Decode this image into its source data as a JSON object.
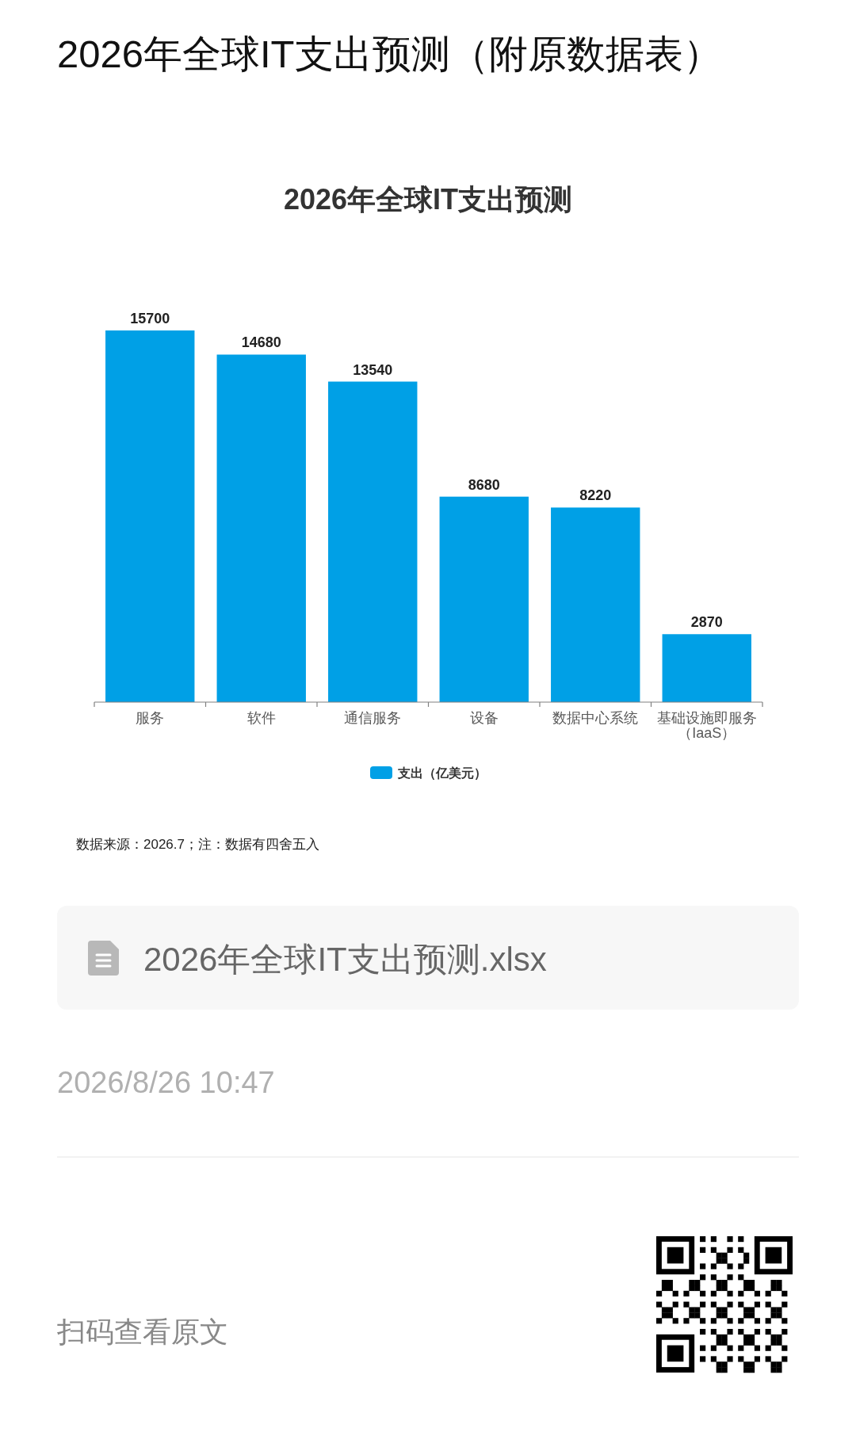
{
  "chart_data": {
    "type": "bar",
    "title": "2026年全球IT支出预测",
    "categories": [
      "服务",
      "软件",
      "通信服务",
      "设备",
      "数据中心系统",
      "基础设施即服务（IaaS）"
    ],
    "series": [
      {
        "name": "支出（亿美元）",
        "color": "#00a0e6",
        "values": [
          15700,
          14680,
          13540,
          8680,
          8220,
          2870
        ]
      }
    ],
    "tick_labels": "x",
    "data_labels": true,
    "legend": "bottom",
    "annotations": [
      "2026年全球IT支出预测（附原数据表）",
      "数据来源：2026.7；注：数据有四舍五入",
      "2026年全球IT支出预测.xlsx",
      "2026/8/26 10:47",
      "扫码查看原文"
    ]
  }
}
